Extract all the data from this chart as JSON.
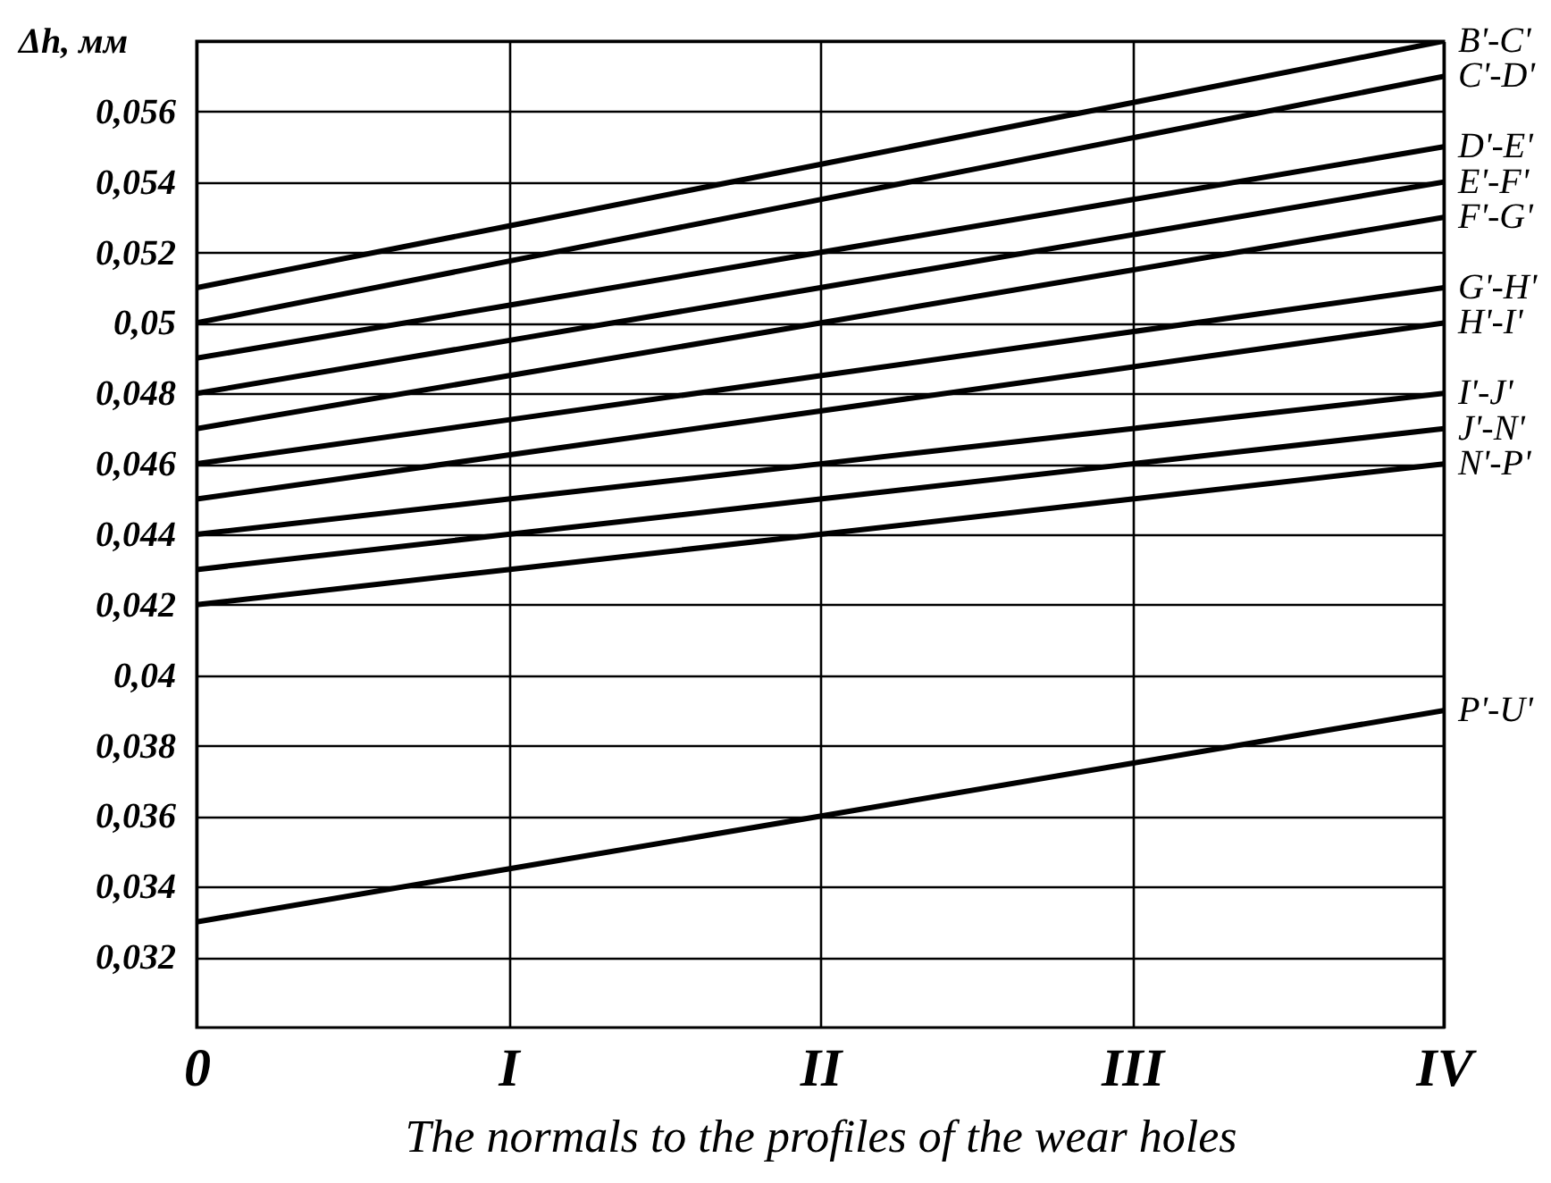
{
  "chart_data": {
    "type": "line",
    "xlabel": "The normals to the profiles of the wear holes",
    "ylabel": "Δh, мм",
    "categories": [
      "0",
      "I",
      "II",
      "III",
      "IV"
    ],
    "ylim": [
      0.03,
      0.058
    ],
    "yticks": [
      {
        "value": 0.032,
        "label": "0,032"
      },
      {
        "value": 0.034,
        "label": "0,034"
      },
      {
        "value": 0.036,
        "label": "0,036"
      },
      {
        "value": 0.038,
        "label": "0,038"
      },
      {
        "value": 0.04,
        "label": "0,04"
      },
      {
        "value": 0.042,
        "label": "0,042"
      },
      {
        "value": 0.044,
        "label": "0,044"
      },
      {
        "value": 0.046,
        "label": "0,046"
      },
      {
        "value": 0.048,
        "label": "0,048"
      },
      {
        "value": 0.05,
        "label": "0,05"
      },
      {
        "value": 0.052,
        "label": "0,052"
      },
      {
        "value": 0.054,
        "label": "0,054"
      },
      {
        "value": 0.056,
        "label": "0,056"
      },
      {
        "value": 0.058,
        "label": null
      }
    ],
    "grid": true,
    "legend": false,
    "series": [
      {
        "name": "B'-C'",
        "color": "#000000",
        "values": [
          0.051,
          0.05275,
          0.0545,
          0.05625,
          0.058
        ]
      },
      {
        "name": "C'-D'",
        "color": "#000000",
        "values": [
          0.05,
          0.05175,
          0.0535,
          0.05525,
          0.057
        ]
      },
      {
        "name": "D'-E'",
        "color": "#000000",
        "values": [
          0.049,
          0.0505,
          0.052,
          0.0535,
          0.055
        ]
      },
      {
        "name": "E'-F'",
        "color": "#000000",
        "values": [
          0.048,
          0.0495,
          0.051,
          0.0525,
          0.054
        ]
      },
      {
        "name": "F'-G'",
        "color": "#000000",
        "values": [
          0.047,
          0.0485,
          0.05,
          0.0515,
          0.053
        ]
      },
      {
        "name": "G'-H'",
        "color": "#000000",
        "values": [
          0.046,
          0.04725,
          0.0485,
          0.04975,
          0.051
        ]
      },
      {
        "name": "H'-I'",
        "color": "#000000",
        "values": [
          0.045,
          0.04625,
          0.0475,
          0.04875,
          0.05
        ]
      },
      {
        "name": "I'-J'",
        "color": "#000000",
        "values": [
          0.044,
          0.045,
          0.046,
          0.047,
          0.048
        ]
      },
      {
        "name": "J'-N'",
        "color": "#000000",
        "values": [
          0.043,
          0.044,
          0.045,
          0.046,
          0.047
        ]
      },
      {
        "name": "N'-P'",
        "color": "#000000",
        "values": [
          0.042,
          0.043,
          0.044,
          0.045,
          0.046
        ]
      },
      {
        "name": "P'-U'",
        "color": "#000000",
        "values": [
          0.033,
          0.0345,
          0.036,
          0.0375,
          0.039
        ]
      }
    ]
  }
}
